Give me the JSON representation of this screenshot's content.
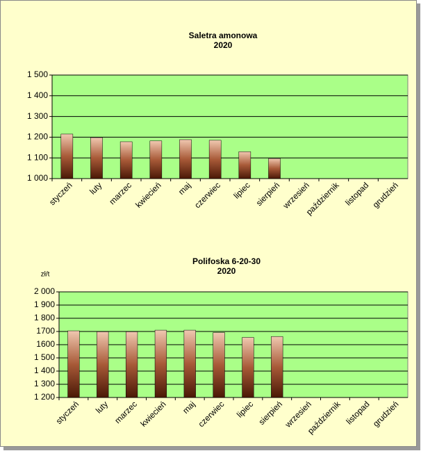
{
  "chart_data": [
    {
      "type": "bar",
      "title": "Saletra amonowa",
      "subtitle": "2020",
      "categories": [
        "styczeń",
        "luty",
        "marzec",
        "kwiecień",
        "maj",
        "czerwiec",
        "lipiec",
        "sierpień",
        "wrzesień",
        "październik",
        "listopad",
        "grudzień"
      ],
      "values": [
        1215,
        1198,
        1178,
        1182,
        1188,
        1185,
        1130,
        1097,
        null,
        null,
        null,
        null
      ],
      "color": "#a85a38",
      "ylim": [
        1000,
        1500
      ],
      "yticks": [
        {
          "value": 1000,
          "label": "1 000"
        },
        {
          "value": 1100,
          "label": "1 100"
        },
        {
          "value": 1200,
          "label": "1 200"
        },
        {
          "value": 1300,
          "label": "1 300"
        },
        {
          "value": 1400,
          "label": "1 400"
        },
        {
          "value": 1500,
          "label": "1 500"
        }
      ],
      "grid": true
    },
    {
      "type": "bar",
      "title": "Polifoska 6-20-30",
      "subtitle": "2020",
      "y_label": "zł/t",
      "categories": [
        "styczeń",
        "luty",
        "marzec",
        "kwiecień",
        "maj",
        "czerwiec",
        "lipiec",
        "sierpień",
        "wrzesień",
        "październik",
        "listopad",
        "grudzień"
      ],
      "values": [
        1705,
        1698,
        1698,
        1710,
        1710,
        1692,
        1655,
        1662,
        null,
        null,
        null,
        null
      ],
      "color": "#a85a38",
      "ylim": [
        1200,
        2000
      ],
      "yticks": [
        {
          "value": 1200,
          "label": "1 200"
        },
        {
          "value": 1300,
          "label": "1 300"
        },
        {
          "value": 1400,
          "label": "1 400"
        },
        {
          "value": 1500,
          "label": "1 500"
        },
        {
          "value": 1600,
          "label": "1600"
        },
        {
          "value": 1700,
          "label": "1700"
        },
        {
          "value": 1800,
          "label": "1 800"
        },
        {
          "value": 1900,
          "label": "1 900"
        },
        {
          "value": 2000,
          "label": "2 000"
        }
      ],
      "grid": true
    }
  ]
}
